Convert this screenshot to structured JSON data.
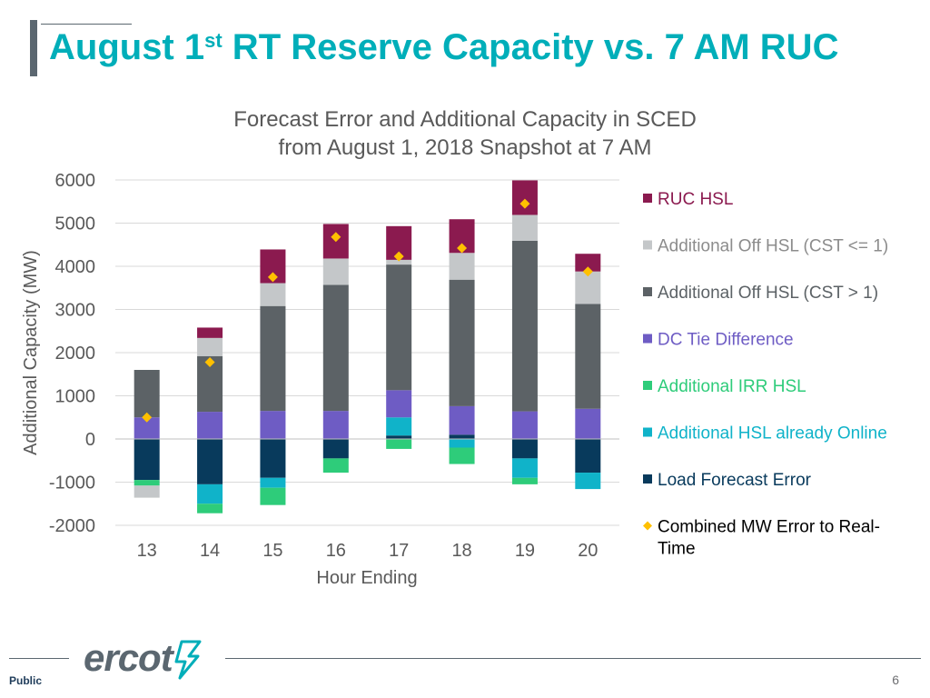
{
  "slide": {
    "title_pre": "August 1",
    "title_sup": "st",
    "title_post": " RT Reserve Capacity vs. 7 AM RUC",
    "logo_text": "ercot",
    "classification": "Public",
    "page_number": "6"
  },
  "colors": {
    "title": "#00aeb9",
    "ruc_hsl": "#8b1a4f",
    "add_off_le1": "#c4c7c9",
    "add_off_gt1": "#5c6266",
    "dc_tie": "#6e5cc4",
    "irr": "#2ecc7a",
    "online": "#10b3c9",
    "load_err": "#083a5c",
    "combined": "#ffc000"
  },
  "chart_data": {
    "type": "bar",
    "stacked": true,
    "title": "Forecast Error and Additional Capacity in SCED",
    "subtitle": "from August 1, 2018 Snapshot at 7 AM",
    "xlabel": "Hour Ending",
    "ylabel": "Additional Capacity (MW)",
    "ylim": [
      -2000,
      6000
    ],
    "yticks": [
      -2000,
      -1000,
      0,
      1000,
      2000,
      3000,
      4000,
      5000,
      6000
    ],
    "categories": [
      "13",
      "14",
      "15",
      "16",
      "17",
      "18",
      "19",
      "20"
    ],
    "grid": true,
    "legend_position": "right",
    "series": [
      {
        "name": "Load Forecast Error",
        "key": "load_err",
        "values": [
          -950,
          -1050,
          -900,
          -450,
          80,
          100,
          -450,
          -780
        ]
      },
      {
        "name": "Additional HSL already Online",
        "key": "online",
        "values": [
          0,
          -450,
          -230,
          0,
          420,
          -200,
          -450,
          -380
        ]
      },
      {
        "name": "Additional IRR HSL",
        "key": "irr",
        "values": [
          -130,
          -220,
          -400,
          -330,
          -230,
          -380,
          -150,
          0
        ]
      },
      {
        "name": "DC Tie Difference",
        "key": "dc_tie",
        "values": [
          500,
          630,
          650,
          650,
          630,
          660,
          640,
          700
        ]
      },
      {
        "name": "Additional Off HSL (CST > 1)",
        "key": "add_off_gt1",
        "values": [
          1100,
          1290,
          2430,
          2920,
          2910,
          2930,
          3950,
          2430
        ]
      },
      {
        "name": "Additional Off HSL (CST <= 1)",
        "key": "add_off_le1",
        "values": [
          -280,
          420,
          530,
          610,
          110,
          620,
          600,
          750
        ]
      },
      {
        "name": "RUC HSL",
        "key": "ruc_hsl",
        "values": [
          0,
          240,
          780,
          800,
          780,
          780,
          800,
          410
        ]
      }
    ],
    "combined_error": {
      "name": "Combined MW Error to Real-Time",
      "key": "combined",
      "values": [
        500,
        1780,
        3750,
        4680,
        4230,
        4420,
        5450,
        3880
      ]
    },
    "legend_order": [
      "ruc_hsl",
      "add_off_le1",
      "add_off_gt1",
      "dc_tie",
      "irr",
      "online",
      "load_err",
      "combined"
    ],
    "combined_legend_lines": [
      "Combined MW Error to Real-",
      "Time"
    ]
  }
}
